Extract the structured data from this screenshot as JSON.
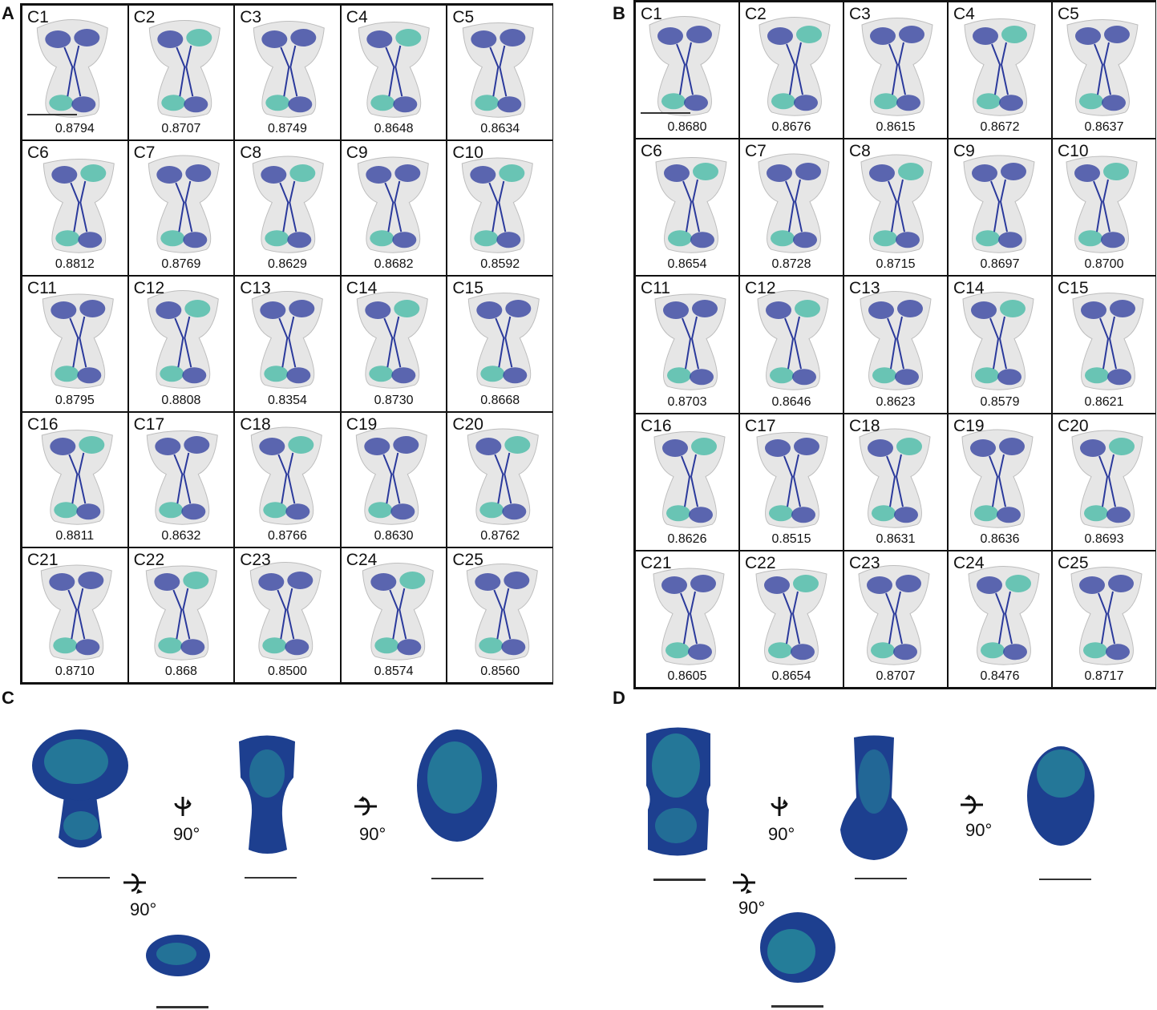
{
  "panels": {
    "A": {
      "letter": "A",
      "cells": [
        {
          "label": "C1",
          "score": "0.8794"
        },
        {
          "label": "C2",
          "score": "0.8707"
        },
        {
          "label": "C3",
          "score": "0.8749"
        },
        {
          "label": "C4",
          "score": "0.8648"
        },
        {
          "label": "C5",
          "score": "0.8634"
        },
        {
          "label": "C6",
          "score": "0.8812"
        },
        {
          "label": "C7",
          "score": "0.8769"
        },
        {
          "label": "C8",
          "score": "0.8629"
        },
        {
          "label": "C9",
          "score": "0.8682"
        },
        {
          "label": "C10",
          "score": "0.8592"
        },
        {
          "label": "C11",
          "score": "0.8795"
        },
        {
          "label": "C12",
          "score": "0.8808"
        },
        {
          "label": "C13",
          "score": "0.8354"
        },
        {
          "label": "C14",
          "score": "0.8730"
        },
        {
          "label": "C15",
          "score": "0.8668"
        },
        {
          "label": "C16",
          "score": "0.8811"
        },
        {
          "label": "C17",
          "score": "0.8632"
        },
        {
          "label": "C18",
          "score": "0.8766"
        },
        {
          "label": "C19",
          "score": "0.8630"
        },
        {
          "label": "C20",
          "score": "0.8762"
        },
        {
          "label": "C21",
          "score": "0.8710"
        },
        {
          "label": "C22",
          "score": "0.868"
        },
        {
          "label": "C23",
          "score": "0.8500"
        },
        {
          "label": "C24",
          "score": "0.8574"
        },
        {
          "label": "C25",
          "score": "0.8560"
        }
      ]
    },
    "B": {
      "letter": "B",
      "cells": [
        {
          "label": "C1",
          "score": "0.8680"
        },
        {
          "label": "C2",
          "score": "0.8676"
        },
        {
          "label": "C3",
          "score": "0.8615"
        },
        {
          "label": "C4",
          "score": "0.8672"
        },
        {
          "label": "C5",
          "score": "0.8637"
        },
        {
          "label": "C6",
          "score": "0.8654"
        },
        {
          "label": "C7",
          "score": "0.8728"
        },
        {
          "label": "C8",
          "score": "0.8715"
        },
        {
          "label": "C9",
          "score": "0.8697"
        },
        {
          "label": "C10",
          "score": "0.8700"
        },
        {
          "label": "C11",
          "score": "0.8703"
        },
        {
          "label": "C12",
          "score": "0.8646"
        },
        {
          "label": "C13",
          "score": "0.8623"
        },
        {
          "label": "C14",
          "score": "0.8579"
        },
        {
          "label": "C15",
          "score": "0.8621"
        },
        {
          "label": "C16",
          "score": "0.8626"
        },
        {
          "label": "C17",
          "score": "0.8515"
        },
        {
          "label": "C18",
          "score": "0.8631"
        },
        {
          "label": "C19",
          "score": "0.8636"
        },
        {
          "label": "C20",
          "score": "0.8693"
        },
        {
          "label": "C21",
          "score": "0.8605"
        },
        {
          "label": "C22",
          "score": "0.8654"
        },
        {
          "label": "C23",
          "score": "0.8707"
        },
        {
          "label": "C24",
          "score": "0.8476"
        },
        {
          "label": "C25",
          "score": "0.8717"
        }
      ]
    },
    "C": {
      "letter": "C",
      "angles": [
        "90°",
        "90°",
        "90°"
      ]
    },
    "D": {
      "letter": "D",
      "angles": [
        "90°",
        "90°",
        "90°"
      ]
    }
  },
  "colors": {
    "density": "#e6e6e6",
    "density_edge": "#bdbdbd",
    "protein_blue": "#2b3a9c",
    "protein_teal": "#3fb8a3",
    "ensemble_dark": "#1d3f8f",
    "ensemble_teal": "#2aa6a0"
  }
}
